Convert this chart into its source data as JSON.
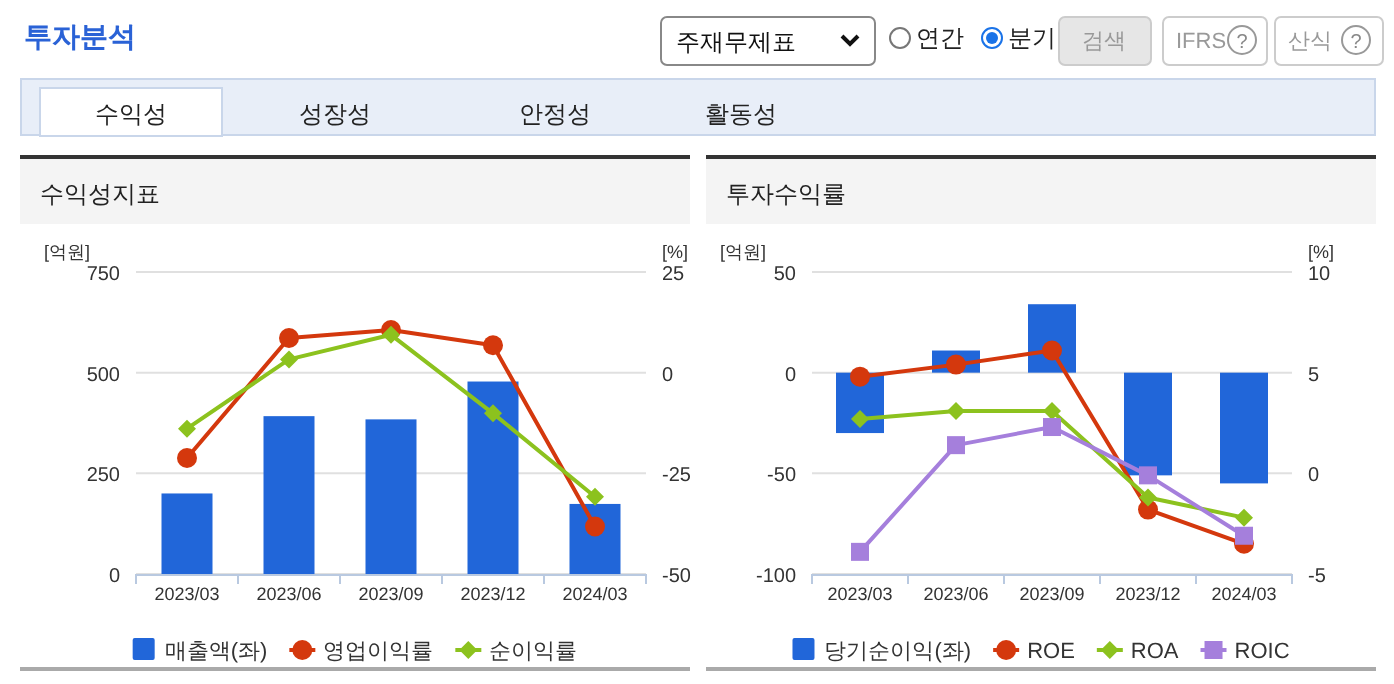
{
  "chart_data": [
    {
      "type": "other",
      "title": "투자분석",
      "annotations": [
        "주재무제표",
        "연간",
        "분기",
        "검색",
        "IFRS",
        "?",
        "산식",
        "?",
        "수익성",
        "성장성",
        "안정성",
        "활동성"
      ]
    },
    {
      "type": "bar",
      "title": "수익성지표",
      "ylabel": "[억원]",
      "y2label": "[%]",
      "categories": [
        "2023/03",
        "2023/06",
        "2023/09",
        "2023/12",
        "2024/03"
      ],
      "ylim": [
        0,
        750
      ],
      "yticks": [
        0,
        250,
        500,
        750
      ],
      "y2lim": [
        -50,
        25
      ],
      "y2ticks": [
        -50,
        -25,
        0,
        25
      ],
      "grid": "y",
      "legend": "bottom",
      "series": [
        {
          "name": "매출액(좌)",
          "color": "#2166d9",
          "values": [
            200,
            392,
            384,
            478,
            174
          ]
        },
        {
          "name": "영업이익률",
          "type": "line",
          "axis": "y2",
          "marker": "circle",
          "color": "#d4380d",
          "values": [
            -21.2,
            8.6,
            10.6,
            6.8,
            -38.2
          ]
        },
        {
          "name": "순이익률",
          "type": "line",
          "axis": "y2",
          "marker": "diamond",
          "color": "#8cc21e",
          "values": [
            -13.9,
            3.3,
            9.4,
            -10.1,
            -30.8
          ]
        }
      ]
    },
    {
      "type": "bar",
      "title": "투자수익률",
      "ylabel": "[억원]",
      "y2label": "[%]",
      "categories": [
        "2023/03",
        "2023/06",
        "2023/09",
        "2023/12",
        "2024/03"
      ],
      "ylim": [
        -100,
        50
      ],
      "yticks": [
        -100,
        -50,
        0,
        50
      ],
      "y2lim": [
        -5,
        10
      ],
      "y2ticks": [
        -5,
        0,
        5,
        10
      ],
      "grid": "y",
      "legend": "bottom",
      "series": [
        {
          "name": "당기순이익(좌)",
          "color": "#2166d9",
          "values": [
            -30,
            11,
            34,
            -51,
            -55
          ]
        },
        {
          "name": "ROE",
          "type": "line",
          "axis": "y2",
          "marker": "circle",
          "color": "#d4380d",
          "values": [
            4.8,
            5.4,
            6.1,
            -1.8,
            -3.5
          ]
        },
        {
          "name": "ROA",
          "type": "line",
          "axis": "y2",
          "marker": "diamond",
          "color": "#8cc21e",
          "values": [
            2.7,
            3.1,
            3.1,
            -1.2,
            -2.2
          ]
        },
        {
          "name": "ROIC",
          "type": "line",
          "axis": "y2",
          "marker": "square",
          "color": "#a57fdc",
          "values": [
            -3.9,
            1.4,
            2.3,
            -0.1,
            -3.1
          ]
        }
      ]
    }
  ]
}
